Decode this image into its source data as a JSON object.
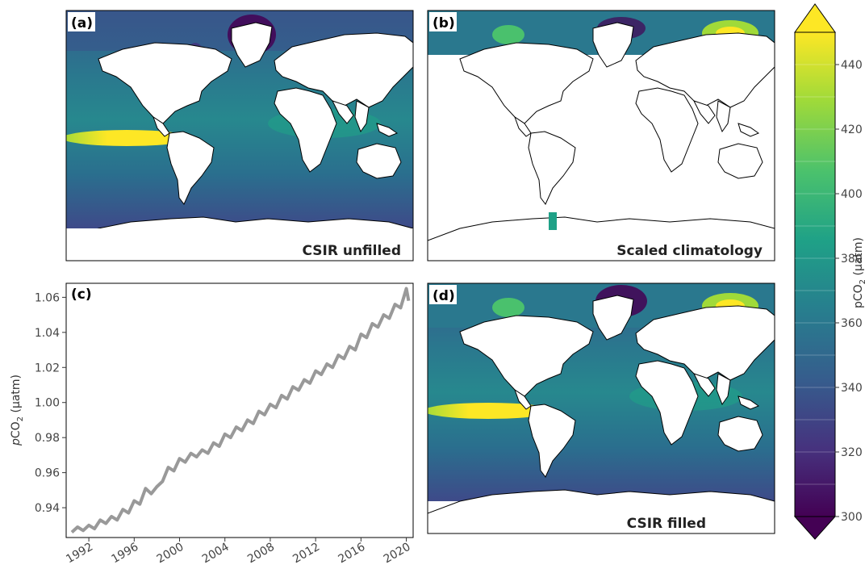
{
  "figure": {
    "colors": {
      "viridis": [
        "#440154",
        "#46327e",
        "#365c8d",
        "#277f8e",
        "#1fa187",
        "#4ac16d",
        "#a0da39",
        "#fde725"
      ],
      "land": "#ffffff",
      "coast": "#000000",
      "timeseries": "#999999"
    },
    "panels": [
      {
        "id": "a",
        "label": "(a)",
        "title": "CSIR unfilled"
      },
      {
        "id": "b",
        "label": "(b)",
        "title": "Scaled climatology"
      },
      {
        "id": "c",
        "label": "(c)",
        "title": ""
      },
      {
        "id": "d",
        "label": "(d)",
        "title": "CSIR filled"
      }
    ],
    "colorbar": {
      "label": "pCO",
      "label_sub": "2",
      "label_unit": " (µatm)",
      "min": 300,
      "max": 450,
      "step": 10,
      "ticks": [
        "300",
        "320",
        "340",
        "360",
        "380",
        "400",
        "420",
        "440"
      ],
      "extend": "both",
      "colormap": "viridis"
    }
  },
  "chart_data": {
    "type": "line",
    "title": "",
    "ylabel_prefix": "p",
    "ylabel_main": "CO",
    "ylabel_sub": "2",
    "ylabel_unit": " (µatm)",
    "xlabel": "",
    "xlim": [
      1990.0,
      2020.6
    ],
    "ylim": [
      0.923,
      1.068
    ],
    "xticks": [
      "1992",
      "1996",
      "2000",
      "2004",
      "2008",
      "2012",
      "2016",
      "2020"
    ],
    "yticks": [
      "0.94",
      "0.96",
      "0.98",
      "1.00",
      "1.02",
      "1.04",
      "1.06"
    ],
    "series": [
      {
        "name": "",
        "color": "#999999",
        "x": [
          1990.5,
          1991.0,
          1991.5,
          1992.0,
          1992.5,
          1993.0,
          1993.5,
          1994.0,
          1994.5,
          1995.0,
          1995.5,
          1996.0,
          1996.5,
          1997.0,
          1997.5,
          1998.0,
          1998.5,
          1999.0,
          1999.5,
          2000.0,
          2000.5,
          2001.0,
          2001.5,
          2002.0,
          2002.5,
          2003.0,
          2003.5,
          2004.0,
          2004.5,
          2005.0,
          2005.5,
          2006.0,
          2006.5,
          2007.0,
          2007.5,
          2008.0,
          2008.5,
          2009.0,
          2009.5,
          2010.0,
          2010.5,
          2011.0,
          2011.5,
          2012.0,
          2012.5,
          2013.0,
          2013.5,
          2014.0,
          2014.5,
          2015.0,
          2015.5,
          2016.0,
          2016.5,
          2017.0,
          2017.5,
          2018.0,
          2018.5,
          2019.0,
          2019.5,
          2020.0,
          2020.2
        ],
        "y": [
          0.926,
          0.929,
          0.927,
          0.93,
          0.928,
          0.933,
          0.931,
          0.935,
          0.933,
          0.939,
          0.937,
          0.944,
          0.942,
          0.951,
          0.948,
          0.952,
          0.955,
          0.963,
          0.961,
          0.968,
          0.966,
          0.971,
          0.969,
          0.973,
          0.971,
          0.977,
          0.975,
          0.982,
          0.98,
          0.986,
          0.984,
          0.99,
          0.988,
          0.995,
          0.993,
          0.999,
          0.997,
          1.004,
          1.002,
          1.009,
          1.007,
          1.013,
          1.011,
          1.018,
          1.016,
          1.022,
          1.02,
          1.027,
          1.025,
          1.032,
          1.03,
          1.039,
          1.037,
          1.045,
          1.043,
          1.05,
          1.048,
          1.056,
          1.054,
          1.065,
          1.058
        ]
      }
    ]
  }
}
